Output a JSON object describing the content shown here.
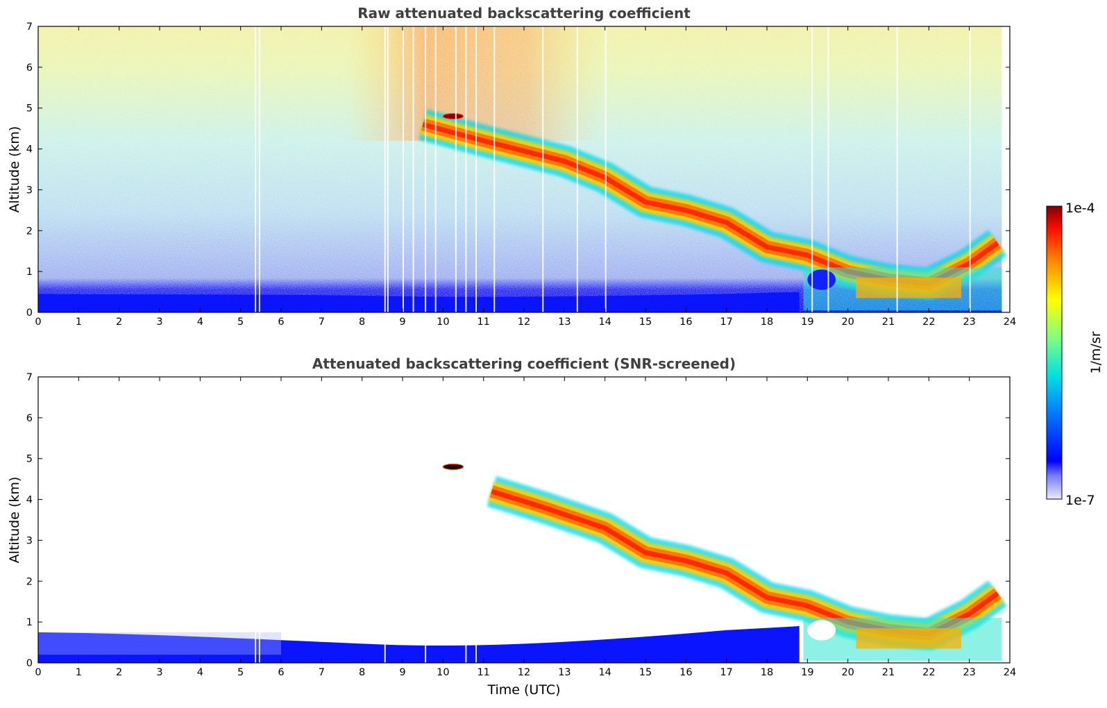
{
  "chart_data": [
    {
      "type": "heatmap",
      "title": "Raw attenuated backscattering coefficient",
      "xlabel": "",
      "ylabel": "Altitude (km)",
      "xlim": [
        0,
        24
      ],
      "ylim": [
        0,
        7
      ],
      "xticks": [
        "0",
        "1",
        "2",
        "3",
        "4",
        "5",
        "6",
        "7",
        "8",
        "9",
        "10",
        "11",
        "12",
        "13",
        "14",
        "15",
        "16",
        "17",
        "18",
        "19",
        "20",
        "21",
        "22",
        "23",
        "24"
      ],
      "yticks": [
        "0",
        "1",
        "2",
        "3",
        "4",
        "5",
        "6",
        "7"
      ],
      "features": [
        {
          "label": "boundary layer",
          "points": [
            [
              0,
              0.3
            ],
            [
              18.8,
              0.3
            ]
          ]
        },
        {
          "label": "descending cloud layer",
          "points": [
            [
              9.5,
              4.6
            ],
            [
              11,
              4.2
            ],
            [
              13,
              3.7
            ],
            [
              14,
              3.3
            ],
            [
              15,
              2.7
            ],
            [
              16,
              2.5
            ],
            [
              17,
              2.2
            ],
            [
              18,
              1.6
            ],
            [
              19,
              1.4
            ],
            [
              20,
              1.0
            ],
            [
              21,
              0.8
            ],
            [
              22,
              0.7
            ],
            [
              23,
              1.2
            ],
            [
              23.7,
              1.7
            ]
          ]
        },
        {
          "label": "elevated layer",
          "points": [
            [
              10.0,
              4.8
            ],
            [
              10.5,
              4.8
            ]
          ]
        }
      ]
    },
    {
      "type": "heatmap",
      "title": "Attenuated backscattering coefficient (SNR-screened)",
      "xlabel": "Time (UTC)",
      "ylabel": "Altitude (km)",
      "xlim": [
        0,
        24
      ],
      "ylim": [
        0,
        7
      ],
      "xticks": [
        "0",
        "1",
        "2",
        "3",
        "4",
        "5",
        "6",
        "7",
        "8",
        "9",
        "10",
        "11",
        "12",
        "13",
        "14",
        "15",
        "16",
        "17",
        "18",
        "19",
        "20",
        "21",
        "22",
        "23",
        "24"
      ],
      "yticks": [
        "0",
        "1",
        "2",
        "3",
        "4",
        "5",
        "6",
        "7"
      ],
      "features": [
        {
          "label": "boundary layer",
          "points": [
            [
              0,
              0.5
            ],
            [
              18.8,
              0.5
            ]
          ]
        },
        {
          "label": "descending cloud layer",
          "points": [
            [
              11.2,
              4.2
            ],
            [
              12.5,
              3.8
            ],
            [
              14,
              3.3
            ],
            [
              15,
              2.7
            ],
            [
              16,
              2.5
            ],
            [
              17,
              2.2
            ],
            [
              18,
              1.6
            ],
            [
              19,
              1.4
            ],
            [
              20,
              1.0
            ],
            [
              21,
              0.8
            ],
            [
              22,
              0.7
            ],
            [
              23,
              1.2
            ],
            [
              23.7,
              1.7
            ]
          ]
        },
        {
          "label": "elevated layer",
          "points": [
            [
              10.0,
              4.8
            ],
            [
              10.5,
              4.8
            ]
          ]
        }
      ]
    }
  ],
  "colorbar": {
    "label": "1/m/sr",
    "max_label": "1e-4",
    "min_label": "1e-7",
    "colormap": "jet"
  }
}
